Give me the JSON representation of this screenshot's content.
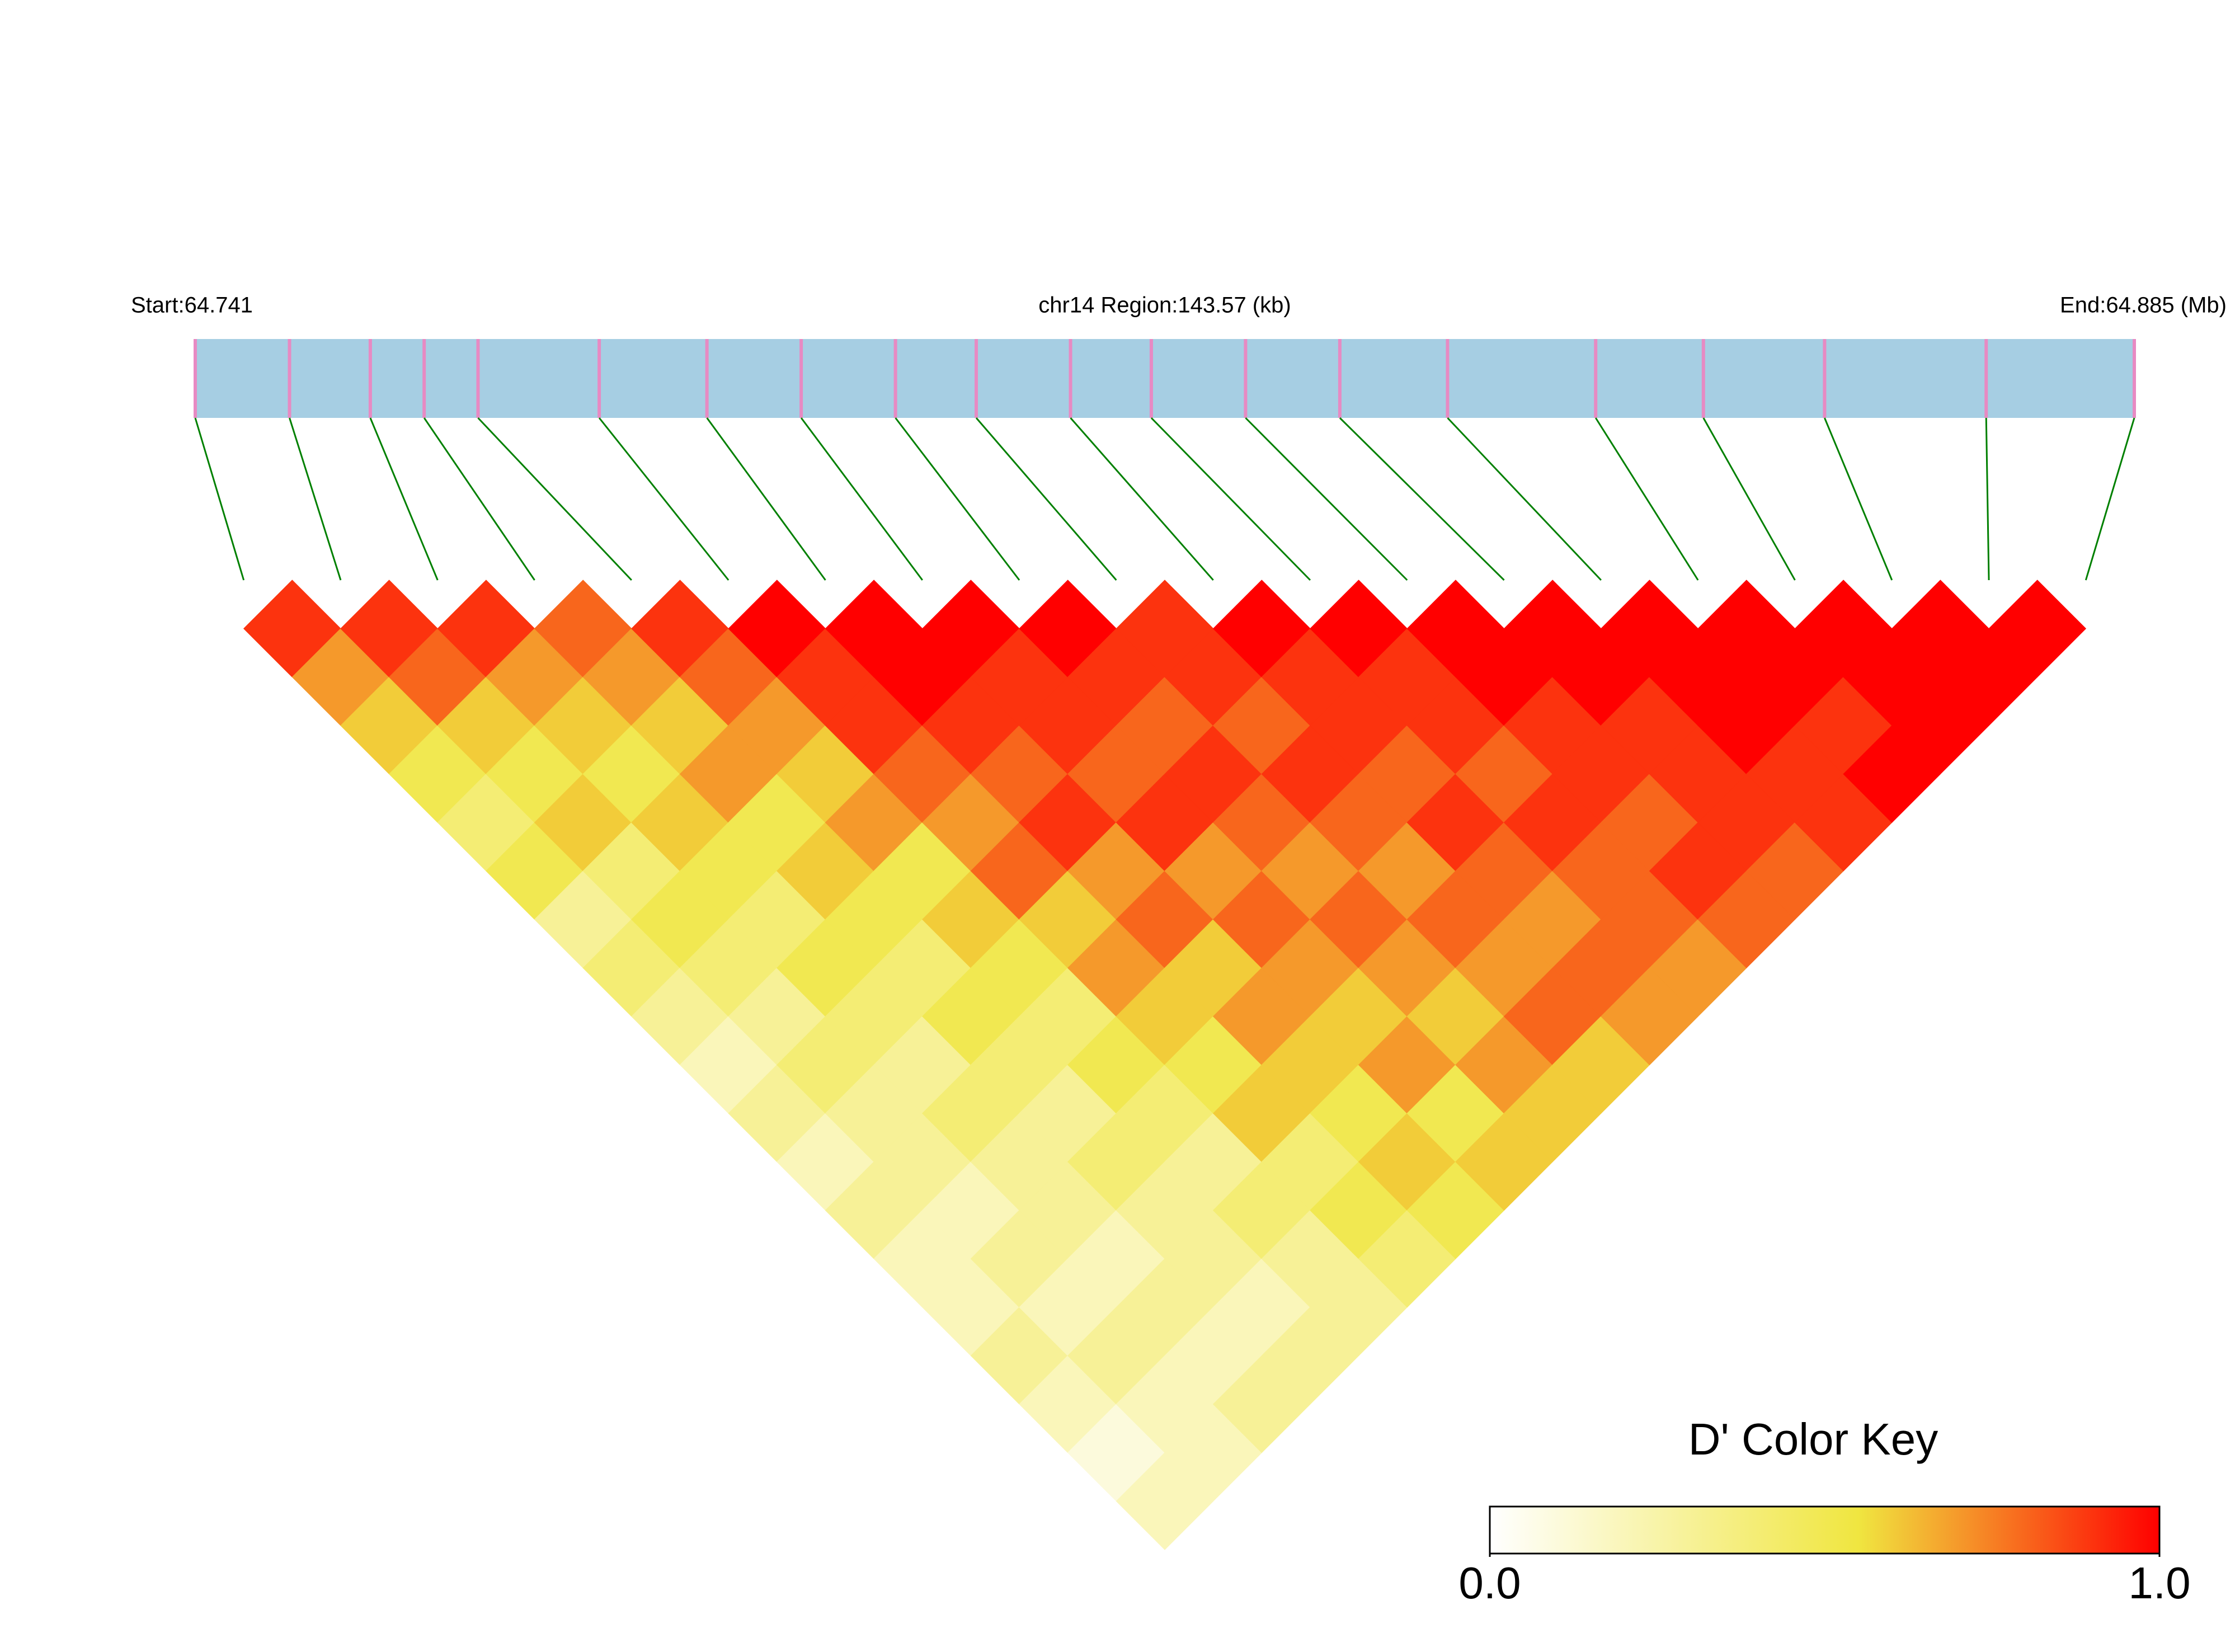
{
  "chart_data": {
    "type": "ld_heatmap",
    "start_label": "Start:64.741",
    "region_label": "chr14 Region:143.57 (kb)",
    "end_label": "End:64.885 (Mb)",
    "xlim": [
      64.741,
      64.885
    ],
    "snp_positions": [
      64.741,
      64.748,
      64.754,
      64.758,
      64.762,
      64.771,
      64.779,
      64.786,
      64.793,
      64.799,
      64.806,
      64.812,
      64.819,
      64.826,
      64.834,
      64.845,
      64.853,
      64.862,
      64.874,
      64.885
    ],
    "dprime": [
      [
        0.9,
        0.7,
        0.6,
        0.5,
        0.4,
        0.5,
        0.3,
        0.4,
        0.3,
        0.2,
        0.3,
        0.2,
        0.3,
        0.2,
        0.2,
        0.3,
        0.2,
        0.1,
        0.2
      ],
      [
        0.9,
        0.8,
        0.6,
        0.5,
        0.6,
        0.4,
        0.5,
        0.4,
        0.3,
        0.4,
        0.3,
        0.3,
        0.2,
        0.3,
        0.2,
        0.3,
        0.2,
        0.2
      ],
      [
        0.9,
        0.7,
        0.6,
        0.5,
        0.6,
        0.5,
        0.4,
        0.5,
        0.4,
        0.3,
        0.4,
        0.3,
        0.3,
        0.2,
        0.3,
        0.2,
        0.3
      ],
      [
        0.8,
        0.7,
        0.6,
        0.7,
        0.5,
        0.6,
        0.5,
        0.4,
        0.5,
        0.4,
        0.3,
        0.4,
        0.3,
        0.3,
        0.2,
        0.3
      ],
      [
        0.9,
        0.8,
        0.7,
        0.6,
        0.7,
        0.5,
        0.6,
        0.5,
        0.4,
        0.5,
        0.4,
        0.3,
        0.4,
        0.3,
        0.3
      ],
      [
        1.0,
        0.9,
        0.9,
        0.8,
        0.7,
        0.8,
        0.6,
        0.7,
        0.6,
        0.5,
        0.6,
        0.4,
        0.5,
        0.4
      ],
      [
        1.0,
        1.0,
        0.9,
        0.8,
        0.9,
        0.7,
        0.8,
        0.6,
        0.7,
        0.6,
        0.5,
        0.6,
        0.5
      ],
      [
        1.0,
        0.9,
        0.9,
        0.8,
        0.9,
        0.7,
        0.8,
        0.7,
        0.6,
        0.7,
        0.5,
        0.6
      ],
      [
        1.0,
        0.9,
        0.8,
        0.9,
        0.8,
        0.7,
        0.8,
        0.7,
        0.6,
        0.7,
        0.6
      ],
      [
        0.9,
        0.9,
        0.8,
        0.9,
        0.8,
        0.7,
        0.8,
        0.7,
        0.8,
        0.6
      ],
      [
        1.0,
        0.9,
        0.9,
        0.8,
        0.9,
        0.8,
        0.7,
        0.8,
        0.7
      ],
      [
        1.0,
        0.9,
        0.9,
        0.8,
        0.9,
        0.8,
        0.8,
        0.7
      ],
      [
        1.0,
        1.0,
        0.9,
        0.9,
        0.8,
        0.9,
        0.8
      ],
      [
        1.0,
        1.0,
        0.9,
        0.9,
        0.9,
        0.8
      ],
      [
        1.0,
        1.0,
        1.0,
        0.9,
        0.9
      ],
      [
        1.0,
        1.0,
        0.9,
        1.0
      ],
      [
        1.0,
        1.0,
        1.0
      ],
      [
        1.0,
        1.0
      ],
      [
        1.0
      ]
    ],
    "color_key_title": "D' Color Key",
    "color_stops": [
      [
        0,
        "#ffffff"
      ],
      [
        0.55,
        "#f0e640"
      ],
      [
        1,
        "#ff0000"
      ]
    ],
    "clim": [
      0,
      1
    ],
    "cticks": [
      {
        "value": 0,
        "label": "0.0"
      },
      {
        "value": 1,
        "label": "1.0"
      }
    ],
    "track_color": "#a6cee3",
    "snp_color": "#e78ac3",
    "link_color": "#008000"
  }
}
